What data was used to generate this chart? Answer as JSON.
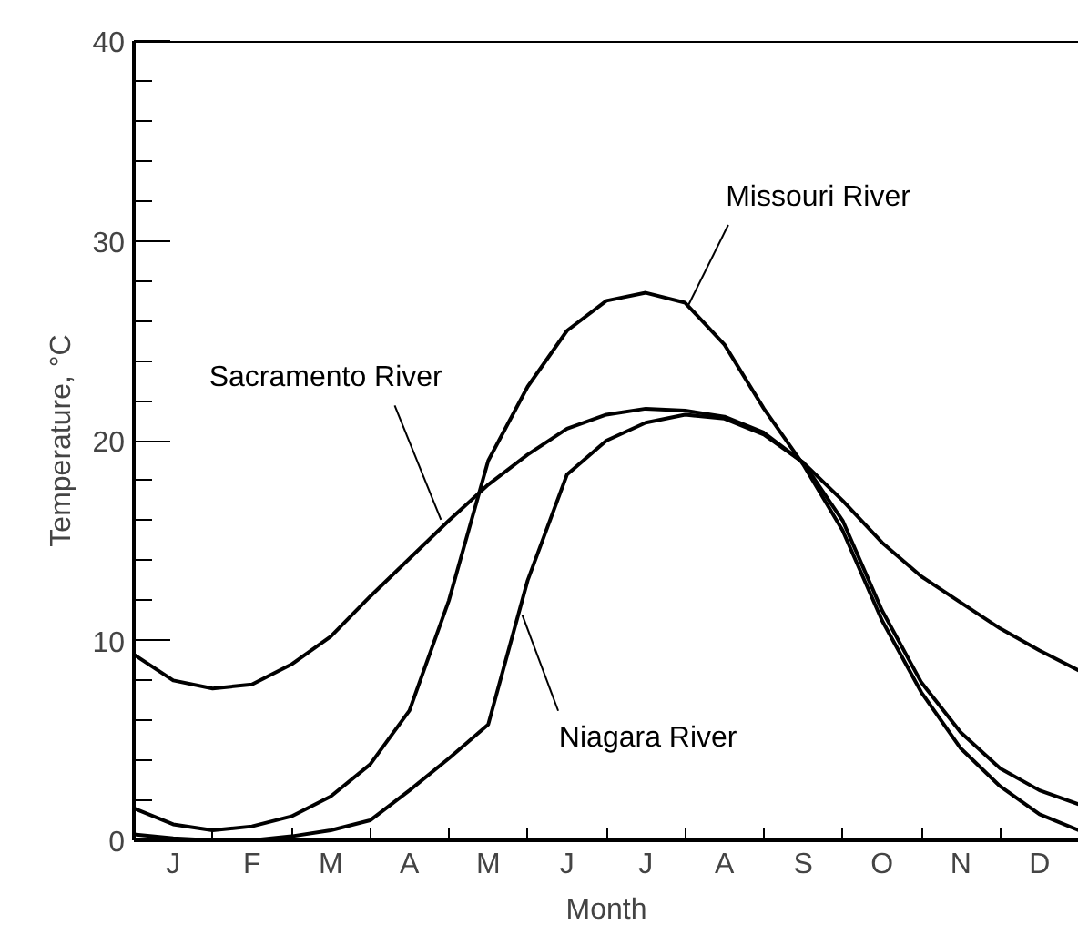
{
  "chart_data": {
    "type": "line",
    "xlabel": "Month",
    "ylabel": "Temperature, °C",
    "categories": [
      null,
      "J",
      null,
      "F",
      null,
      "M",
      null,
      "A",
      null,
      "M",
      null,
      "J",
      null,
      "J",
      null,
      "A",
      null,
      "S",
      null,
      "O",
      null,
      "N",
      null,
      "D",
      null
    ],
    "ylim": [
      0,
      40
    ],
    "yticks": [
      0,
      {
        "value": 2,
        "label": null
      },
      {
        "value": 4,
        "label": null
      },
      {
        "value": 6,
        "label": null
      },
      {
        "value": 8,
        "label": null
      },
      10,
      {
        "value": 12,
        "label": null
      },
      {
        "value": 14,
        "label": null
      },
      {
        "value": 16,
        "label": null
      },
      {
        "value": 18,
        "label": null
      },
      20,
      {
        "value": 22,
        "label": null
      },
      {
        "value": 24,
        "label": null
      },
      {
        "value": 26,
        "label": null
      },
      {
        "value": 28,
        "label": null
      },
      30,
      {
        "value": 32,
        "label": null
      },
      {
        "value": 34,
        "label": null
      },
      {
        "value": 36,
        "label": null
      },
      {
        "value": 38,
        "label": null
      },
      40
    ],
    "grid": false,
    "marker": "none",
    "line_style": "solid",
    "series": [
      {
        "name": "Sacramento River",
        "color": "#000000",
        "values": [
          9.3,
          8.0,
          7.6,
          7.8,
          8.8,
          10.2,
          12.2,
          14.1,
          16.0,
          17.8,
          19.3,
          20.6,
          21.3,
          21.6,
          21.5,
          21.2,
          20.4,
          18.9,
          17.0,
          14.9,
          13.2,
          11.9,
          10.6,
          9.5,
          8.5
        ]
      },
      {
        "name": "Missouri River",
        "color": "#000000",
        "values": [
          1.6,
          0.8,
          0.5,
          0.7,
          1.2,
          2.2,
          3.8,
          6.5,
          12.0,
          19.0,
          22.7,
          25.5,
          27.0,
          27.4,
          26.9,
          24.8,
          21.6,
          18.8,
          15.5,
          11.0,
          7.4,
          4.6,
          2.7,
          1.3,
          0.5
        ]
      },
      {
        "name": "Niagara River",
        "color": "#000000",
        "values": [
          0.3,
          0.1,
          0,
          0,
          0.2,
          0.5,
          1.0,
          2.5,
          4.1,
          5.8,
          13.0,
          18.3,
          20.0,
          20.9,
          21.3,
          21.1,
          20.3,
          18.9,
          16.0,
          11.5,
          7.9,
          5.4,
          3.6,
          2.5,
          1.8
        ]
      }
    ]
  }
}
